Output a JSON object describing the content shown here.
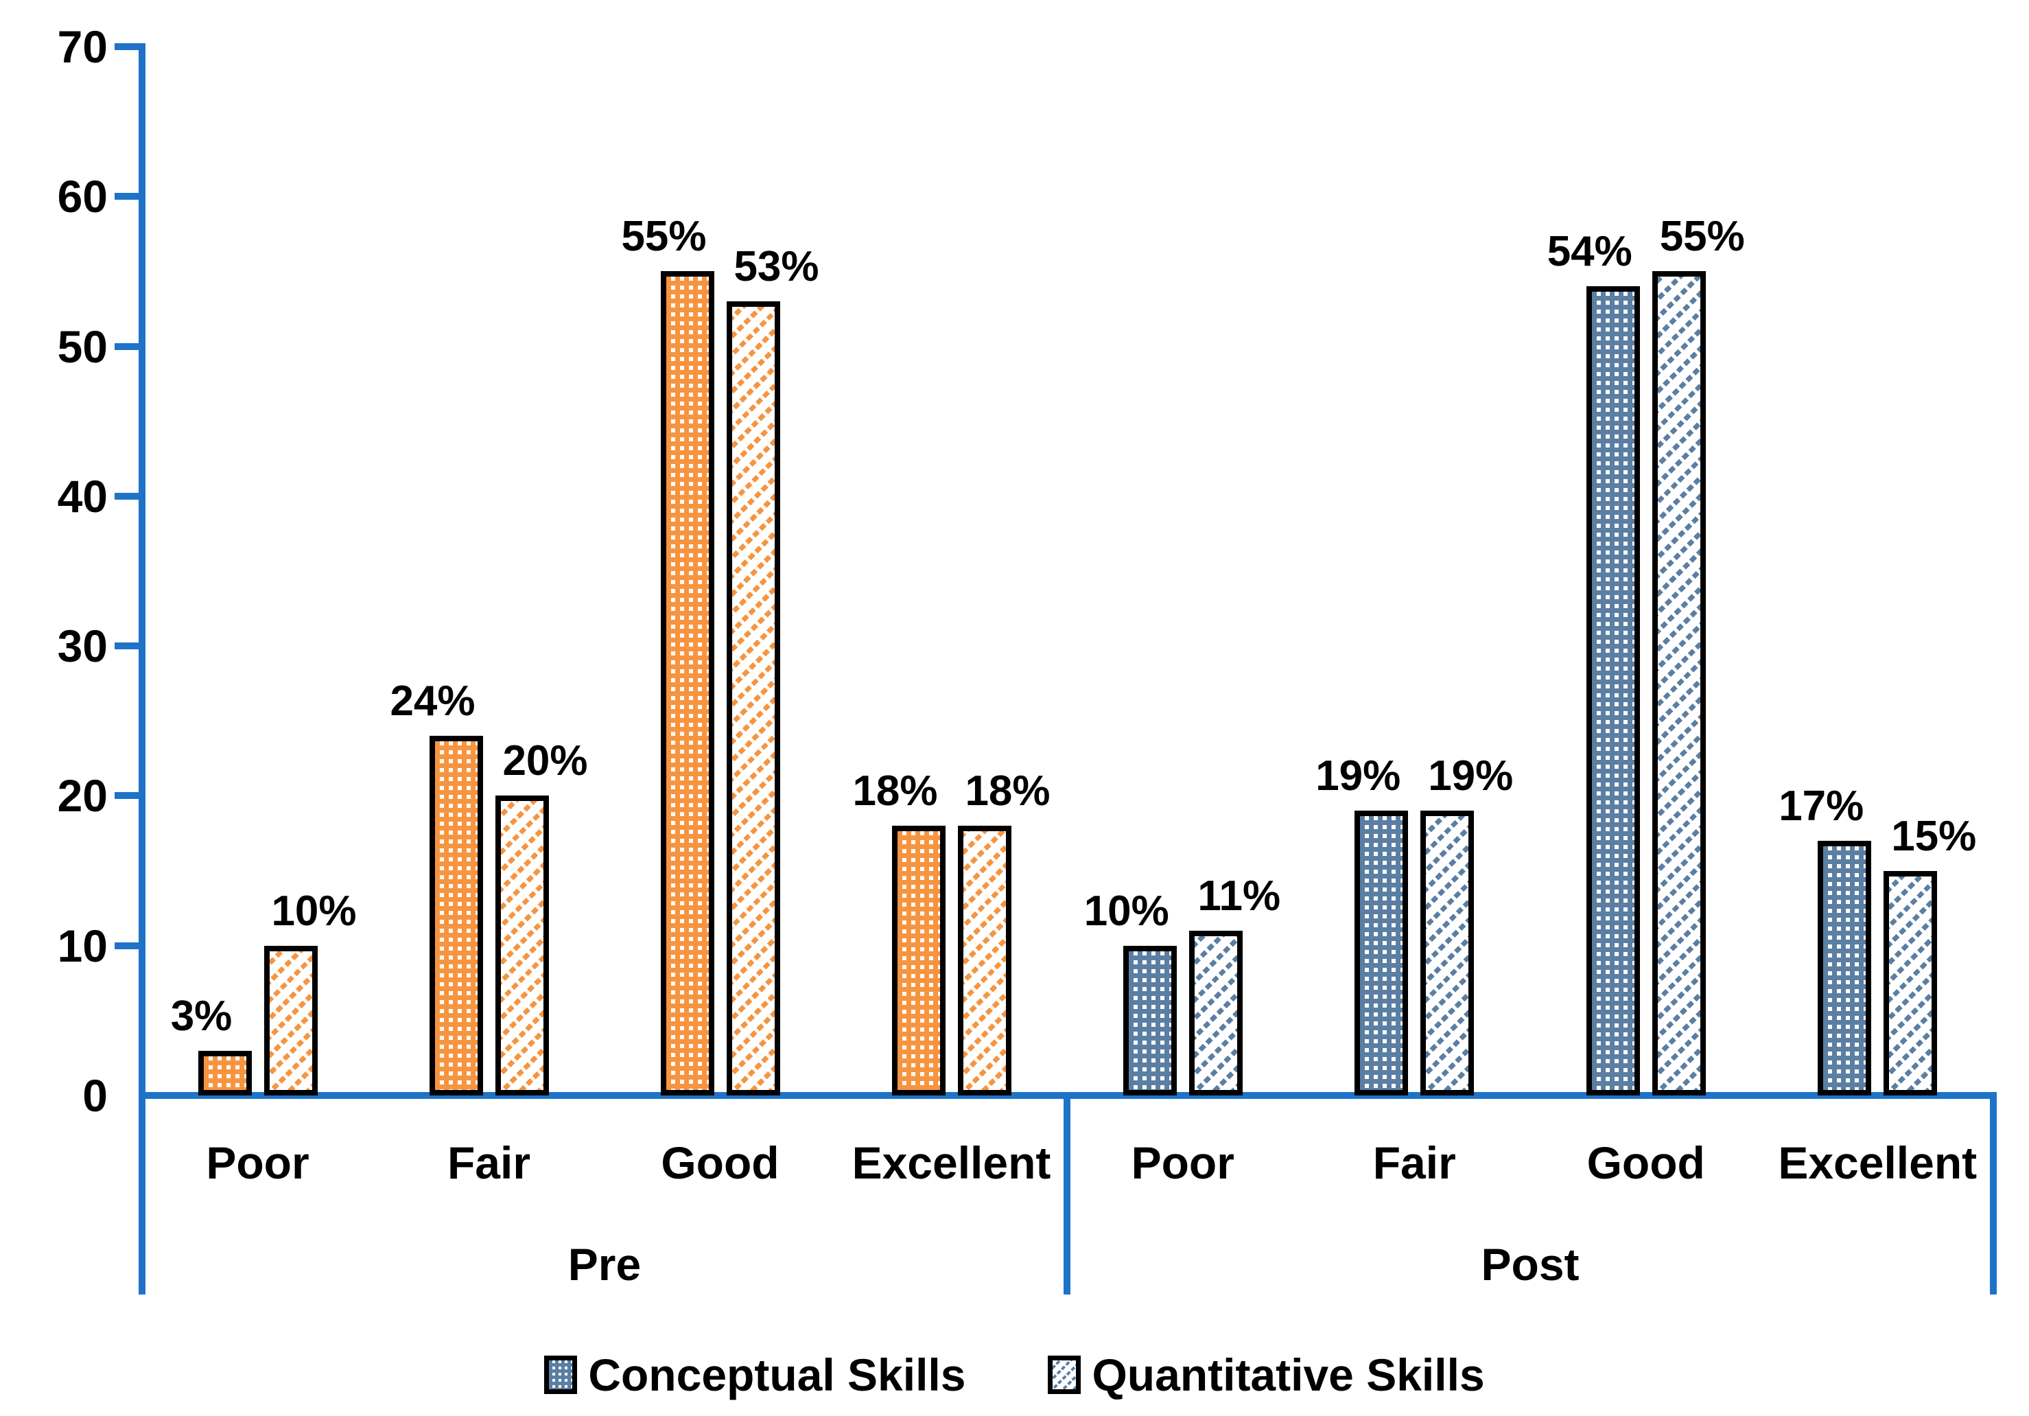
{
  "chart_data": {
    "type": "bar",
    "title": "",
    "xlabel": "",
    "ylabel": "",
    "ylim": [
      0,
      70
    ],
    "yticks": [
      0,
      10,
      20,
      30,
      40,
      50,
      60,
      70
    ],
    "ytick_labels": [
      "0",
      "10",
      "20",
      "30",
      "40",
      "50",
      "60",
      "70"
    ],
    "grid": false,
    "legend_position": "bottom",
    "axis_color": "#1E73C8",
    "groups": [
      {
        "label": "Pre",
        "bar_color": "#F79440",
        "categories": [
          "Poor",
          "Fair",
          "Good",
          "Excellent"
        ],
        "series": [
          {
            "name": "Conceptual Skills",
            "pattern": "dots",
            "values": [
              3,
              24,
              55,
              18
            ],
            "data_labels": [
              "3%",
              "24%",
              "55%",
              "18%"
            ]
          },
          {
            "name": "Quantitative Skills",
            "pattern": "hatch",
            "values": [
              10,
              20,
              53,
              18
            ],
            "data_labels": [
              "10%",
              "20%",
              "53%",
              "18%"
            ]
          }
        ]
      },
      {
        "label": "Post",
        "bar_color": "#5B7FA3",
        "categories": [
          "Poor",
          "Fair",
          "Good",
          "Excellent"
        ],
        "series": [
          {
            "name": "Conceptual Skills",
            "pattern": "dots",
            "values": [
              10,
              19,
              54,
              17
            ],
            "data_labels": [
              "10%",
              "19%",
              "54%",
              "17%"
            ]
          },
          {
            "name": "Quantitative Skills",
            "pattern": "hatch",
            "values": [
              11,
              19,
              55,
              15
            ],
            "data_labels": [
              "11%",
              "19%",
              "55%",
              "15%"
            ]
          }
        ]
      }
    ],
    "legend": [
      {
        "label": "Conceptual Skills",
        "pattern": "dots",
        "swatch_color": "#5B7FA3"
      },
      {
        "label": "Quantitative Skills",
        "pattern": "hatch",
        "swatch_color": "#5B7FA3"
      }
    ]
  }
}
